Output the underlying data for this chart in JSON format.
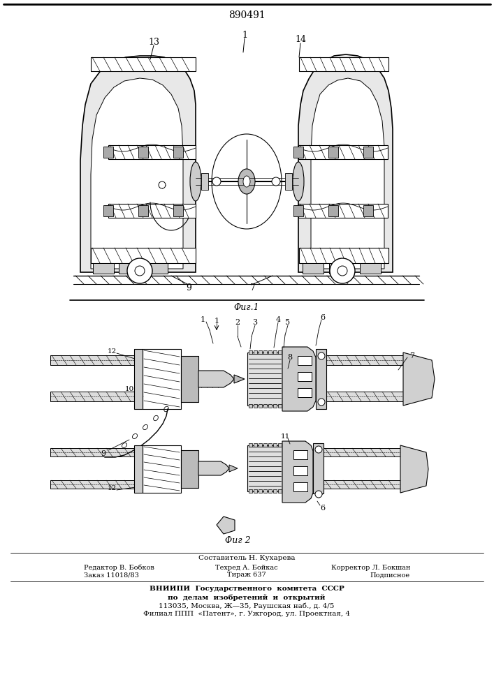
{
  "patent_number": "890491",
  "background_color": "#ffffff",
  "footer": {
    "line1": "Составитель Н. Кухарева",
    "line2_left": "Редактор В. Бобков",
    "line2_mid": "Техред А. Бойкас",
    "line2_right": "Корректор Л. Бокшан",
    "line3_left": "Заказ 11018/83",
    "line3_mid": "Тираж 637",
    "line3_right": "Подписное",
    "line4": "ВНИИПИ  Государственного  комитета  СССР",
    "line5": "по  делам  изобретений  и  открытий",
    "line6": "113035, Москва, Ж—35, Раушская наб., д. 4/5",
    "line7": "Филиал ППП  «Патент», г. Ужгород, ул. Проектная, 4"
  }
}
